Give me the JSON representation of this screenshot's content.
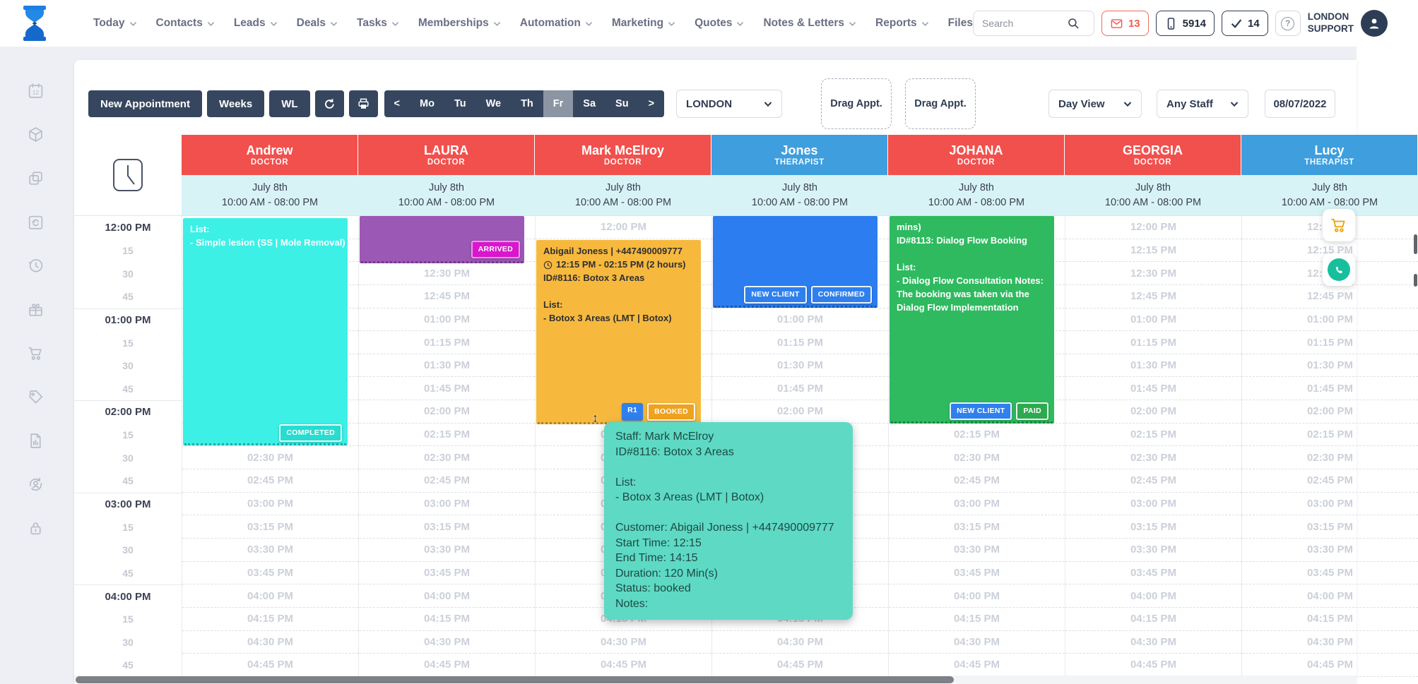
{
  "topbar": {
    "nav": [
      {
        "label": "Today"
      },
      {
        "label": "Contacts"
      },
      {
        "label": "Leads"
      },
      {
        "label": "Deals"
      },
      {
        "label": "Tasks"
      },
      {
        "label": "Memberships"
      },
      {
        "label": "Automation"
      },
      {
        "label": "Marketing"
      },
      {
        "label": "Quotes"
      },
      {
        "label": "Notes & Letters"
      },
      {
        "label": "Reports"
      },
      {
        "label": "Files",
        "chevron": false
      }
    ],
    "search_placeholder": "Search",
    "mail_count": "13",
    "phone_count": "5914",
    "check_count": "14",
    "account_line1": "LONDON",
    "account_line2": "SUPPORT"
  },
  "toolbar": {
    "new_appointment": "New Appointment",
    "weeks": "Weeks",
    "wl": "WL",
    "days": [
      "<",
      "Mo",
      "Tu",
      "We",
      "Th",
      "Fr",
      "Sa",
      "Su",
      ">"
    ],
    "active_day": "Fr",
    "location": "LONDON",
    "drag1": "Drag Appt.",
    "drag2": "Drag Appt.",
    "view": "Day View",
    "staff_filter": "Any Staff",
    "date": "08/07/2022"
  },
  "columns": [
    {
      "name": "Andrew",
      "role": "DOCTOR",
      "date": "July 8th",
      "hours": "10:00 AM - 08:00 PM"
    },
    {
      "name": "LAURA",
      "role": "DOCTOR",
      "date": "July 8th",
      "hours": "10:00 AM - 08:00 PM"
    },
    {
      "name": "Mark McElroy",
      "role": "DOCTOR",
      "date": "July 8th",
      "hours": "10:00 AM - 08:00 PM"
    },
    {
      "name": "Jones",
      "role": "THERAPIST",
      "date": "July 8th",
      "hours": "10:00 AM - 08:00 PM"
    },
    {
      "name": "JOHANA",
      "role": "DOCTOR",
      "date": "July 8th",
      "hours": "10:00 AM - 08:00 PM"
    },
    {
      "name": "GEORGIA",
      "role": "DOCTOR",
      "date": "July 8th",
      "hours": "10:00 AM - 08:00 PM"
    },
    {
      "name": "Lucy",
      "role": "THERAPIST",
      "date": "July 8th",
      "hours": "10:00 AM - 08:00 PM"
    }
  ],
  "grid": {
    "times": [
      "12:00 PM",
      "12:15 PM",
      "12:30 PM",
      "12:45 PM",
      "01:00 PM",
      "01:15 PM",
      "01:30 PM",
      "01:45 PM",
      "02:00 PM",
      "02:15 PM",
      "02:30 PM",
      "02:45 PM",
      "03:00 PM",
      "03:15 PM",
      "03:30 PM",
      "03:45 PM",
      "04:00 PM",
      "04:15 PM",
      "04:30 PM",
      "04:45 PM"
    ],
    "gutter": [
      "12:00 PM",
      "15",
      "30",
      "45",
      "01:00 PM",
      "15",
      "30",
      "45",
      "02:00 PM",
      "15",
      "30",
      "45",
      "03:00 PM",
      "15",
      "30",
      "45",
      "04:00 PM",
      "15",
      "30",
      "45"
    ]
  },
  "appointments": {
    "andrew": {
      "line1": "List:",
      "line2": "- Simple lesion (SS | Mole Removal)",
      "badge1": "COMPLETED"
    },
    "laura": {
      "badge1": "ARRIVED"
    },
    "mark": {
      "line1": "Abigail Joness | +447490009777",
      "line2": "12:15 PM - 02:15 PM (2 hours)",
      "line3": "ID#8116: Botox 3 Areas",
      "line4": "",
      "line5": "List:",
      "line6": "- Botox 3 Areas (LMT | Botox)",
      "badge1": "R1",
      "badge2": "BOOKED"
    },
    "jones": {
      "badge1": "NEW CLIENT",
      "badge2": "CONFIRMED"
    },
    "johana": {
      "line1": "mins)",
      "line2": "ID#8113: Dialog Flow Booking",
      "line3": "",
      "line4": "List:",
      "line5": "- Dialog Flow Consultation Notes:",
      "line6": "The booking was taken via the",
      "line7": "Dialog Flow Implementation",
      "badge1": "NEW CLIENT",
      "badge2": "PAID"
    }
  },
  "tooltip": {
    "line1": "Staff: Mark McElroy",
    "line2": "ID#8116: Botox 3 Areas",
    "line3": "",
    "line4": "List:",
    "line5": "- Botox 3 Areas (LMT | Botox)",
    "line6": "",
    "line7": "Customer: Abigail Joness | +447490009777",
    "line8": "Start Time: 12:15",
    "line9": "End Time: 14:15",
    "line10": "Duration: 120 Min(s)",
    "line11": "Status: booked",
    "line12": "Notes:"
  },
  "colors": {
    "doctor_header": "#f2504d",
    "therapist_header": "#3f9edd",
    "toolbar_button": "#36465f",
    "tooltip": "#5ed9c4",
    "appt_cyan": "#3cf0e6",
    "appt_purple": "#9b58b5",
    "appt_orange": "#f6b93e",
    "appt_blue": "#2b7df0",
    "appt_green": "#2fba60"
  }
}
